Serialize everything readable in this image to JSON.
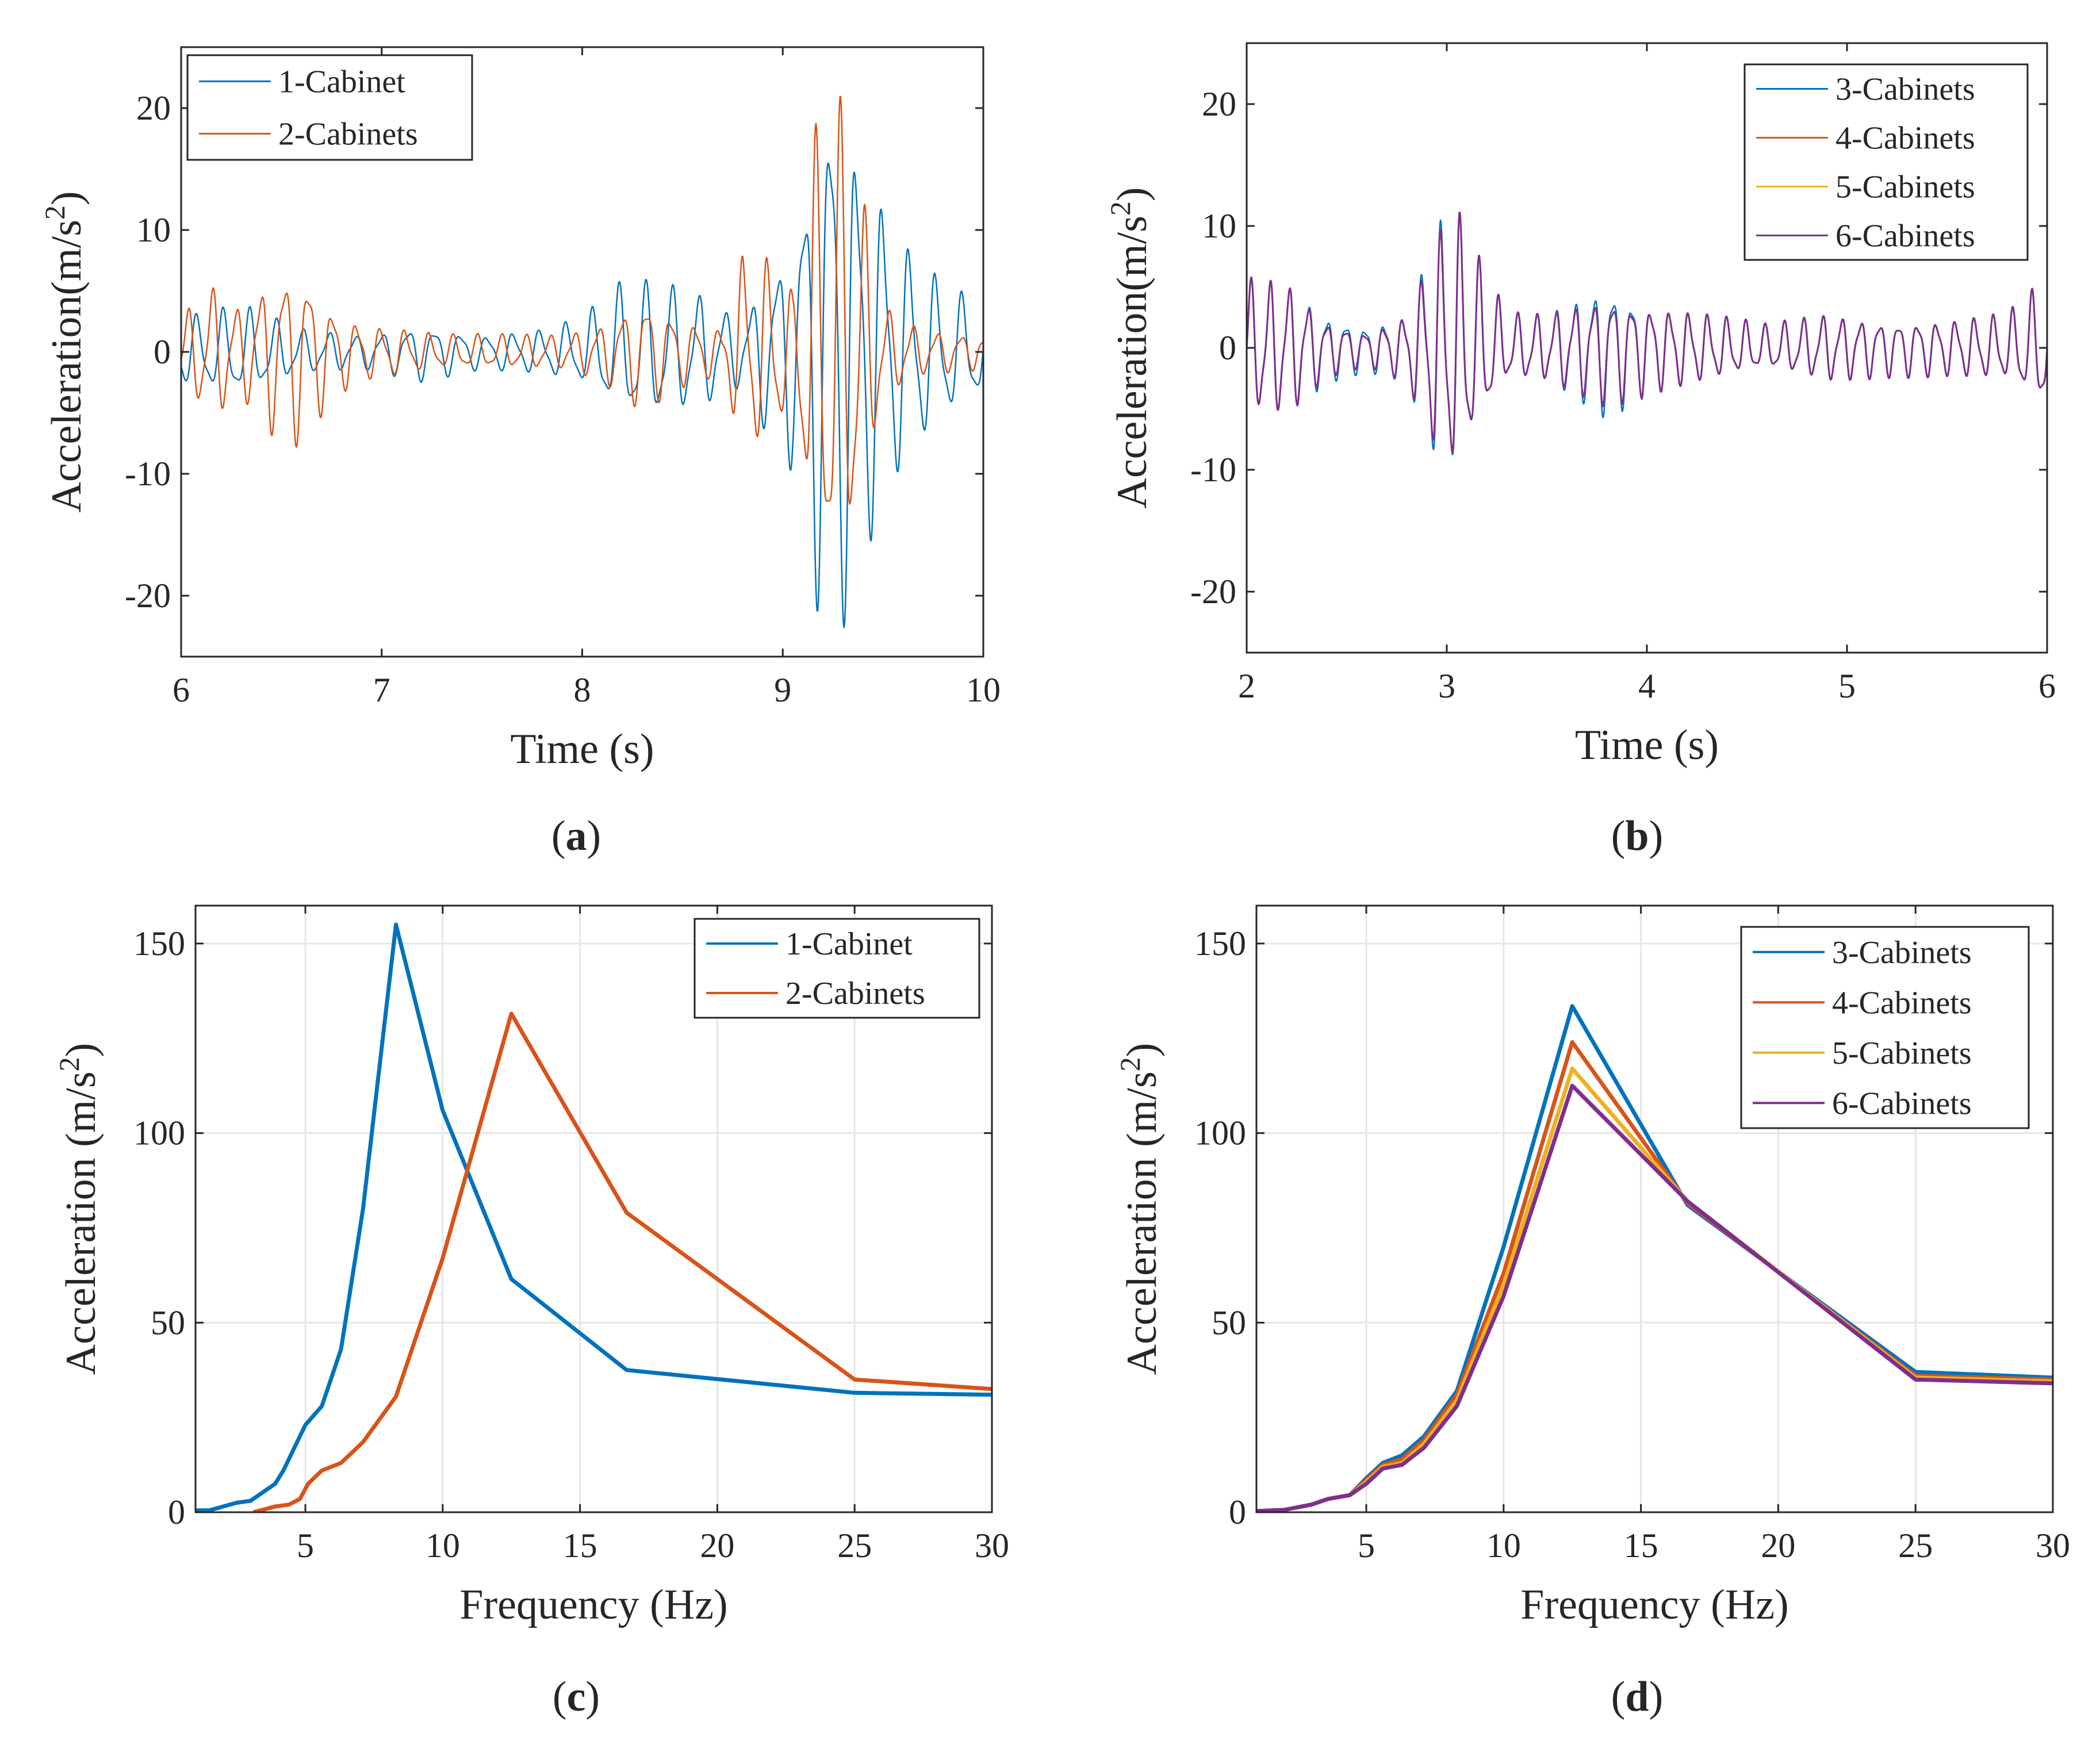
{
  "colors": {
    "blue": "#0072BD",
    "orange": "#D95319",
    "yellow": "#EDB120",
    "purple": "#7E2F8E"
  },
  "chart_data": [
    {
      "id": "a",
      "type": "line",
      "caption_letter": "a",
      "xlabel": "Time (s)",
      "ylabel": "Acceleration(m/s",
      "ylabel_sup": "2",
      "ylabel_end": ")",
      "xlim": [
        6,
        10
      ],
      "ylim": [
        -25,
        25
      ],
      "xticks": [
        6,
        7,
        8,
        9,
        10
      ],
      "yticks": [
        -20,
        -10,
        0,
        10,
        20
      ],
      "grid": false,
      "legend_position": "top-left",
      "series": [
        {
          "name": "1-Cabinet",
          "color": "#0072BD",
          "stroke": 2.5,
          "envelope": [
            [
              6.0,
              3
            ],
            [
              6.3,
              4
            ],
            [
              6.6,
              2
            ],
            [
              6.9,
              1.5
            ],
            [
              7.2,
              2.5
            ],
            [
              7.5,
              1.5
            ],
            [
              7.8,
              2
            ],
            [
              8.0,
              3
            ],
            [
              8.2,
              6
            ],
            [
              8.4,
              6
            ],
            [
              8.6,
              5
            ],
            [
              8.8,
              3
            ],
            [
              8.95,
              8
            ],
            [
              9.05,
              10
            ],
            [
              9.15,
              20
            ],
            [
              9.25,
              26
            ],
            [
              9.4,
              18
            ],
            [
              9.6,
              10
            ],
            [
              9.8,
              6
            ],
            [
              10.0,
              4
            ]
          ],
          "freq": 7.6,
          "phase": 0.3
        },
        {
          "name": "2-Cabinets",
          "color": "#D95319",
          "stroke": 2.5,
          "envelope": [
            [
              6.0,
              3
            ],
            [
              6.15,
              6
            ],
            [
              6.3,
              4
            ],
            [
              6.45,
              7
            ],
            [
              6.6,
              8
            ],
            [
              6.75,
              4
            ],
            [
              6.9,
              2.5
            ],
            [
              7.1,
              2
            ],
            [
              7.3,
              1.5
            ],
            [
              7.6,
              1.5
            ],
            [
              7.9,
              1.5
            ],
            [
              8.1,
              2.5
            ],
            [
              8.3,
              5
            ],
            [
              8.5,
              3
            ],
            [
              8.7,
              2
            ],
            [
              8.8,
              9
            ],
            [
              8.95,
              8
            ],
            [
              9.05,
              5
            ],
            [
              9.15,
              18
            ],
            [
              9.25,
              23
            ],
            [
              9.35,
              18
            ],
            [
              9.5,
              4
            ],
            [
              9.7,
              2
            ],
            [
              10.0,
              1.5
            ]
          ],
          "freq": 8.3,
          "phase": 1.1
        }
      ]
    },
    {
      "id": "b",
      "type": "line",
      "caption_letter": "b",
      "xlabel": "Time (s)",
      "ylabel": "Acceleration(m/s",
      "ylabel_sup": "2",
      "ylabel_end": ")",
      "xlim": [
        2,
        6
      ],
      "ylim": [
        -25,
        25
      ],
      "xticks": [
        2,
        3,
        4,
        5,
        6
      ],
      "yticks": [
        -20,
        -10,
        0,
        10,
        20
      ],
      "grid": false,
      "legend_position": "top-right",
      "series": [
        {
          "name": "3-Cabinets",
          "color": "#0072BD",
          "stroke": 2.5,
          "envelope": [
            [
              2.0,
              6
            ],
            [
              2.2,
              6
            ],
            [
              2.4,
              3
            ],
            [
              2.6,
              2
            ],
            [
              2.8,
              3
            ],
            [
              2.95,
              11
            ],
            [
              3.05,
              12
            ],
            [
              3.15,
              8
            ],
            [
              3.3,
              3
            ],
            [
              3.5,
              3
            ],
            [
              3.8,
              6
            ],
            [
              4.0,
              4
            ],
            [
              4.3,
              3
            ],
            [
              4.6,
              2
            ],
            [
              4.9,
              3
            ],
            [
              5.2,
              2.5
            ],
            [
              5.5,
              2.5
            ],
            [
              5.8,
              3
            ],
            [
              6.0,
              6
            ]
          ],
          "freq": 10.5,
          "phase": 0.2
        },
        {
          "name": "4-Cabinets",
          "color": "#D95319",
          "stroke": 2.5,
          "envelope": [
            [
              2.0,
              6
            ],
            [
              2.2,
              6
            ],
            [
              2.4,
              2.5
            ],
            [
              2.6,
              1.5
            ],
            [
              2.8,
              3
            ],
            [
              2.95,
              10
            ],
            [
              3.05,
              12
            ],
            [
              3.15,
              8
            ],
            [
              3.3,
              3
            ],
            [
              3.5,
              3
            ],
            [
              3.8,
              5
            ],
            [
              4.0,
              4
            ],
            [
              4.3,
              3
            ],
            [
              4.6,
              2
            ],
            [
              4.9,
              3
            ],
            [
              5.2,
              2.5
            ],
            [
              5.5,
              2.5
            ],
            [
              5.8,
              3
            ],
            [
              6.0,
              6
            ]
          ],
          "freq": 10.5,
          "phase": 0.25
        },
        {
          "name": "5-Cabinets",
          "color": "#EDB120",
          "stroke": 2.5,
          "envelope": [
            [
              2.0,
              6
            ],
            [
              2.2,
              6
            ],
            [
              2.4,
              2.5
            ],
            [
              2.6,
              1.5
            ],
            [
              2.8,
              3
            ],
            [
              2.95,
              10
            ],
            [
              3.05,
              12
            ],
            [
              3.15,
              8
            ],
            [
              3.3,
              3
            ],
            [
              3.5,
              3
            ],
            [
              3.8,
              5
            ],
            [
              4.0,
              4
            ],
            [
              4.3,
              3
            ],
            [
              4.6,
              2
            ],
            [
              4.9,
              3
            ],
            [
              5.2,
              2.5
            ],
            [
              5.5,
              2.5
            ],
            [
              5.8,
              3
            ],
            [
              6.0,
              6
            ]
          ],
          "freq": 10.5,
          "phase": 0.27
        },
        {
          "name": "6-Cabinets",
          "color": "#7E2F8E",
          "stroke": 3,
          "envelope": [
            [
              2.0,
              6
            ],
            [
              2.2,
              6
            ],
            [
              2.4,
              2.5
            ],
            [
              2.6,
              1.5
            ],
            [
              2.8,
              3
            ],
            [
              2.95,
              10
            ],
            [
              3.05,
              12
            ],
            [
              3.15,
              8
            ],
            [
              3.3,
              3
            ],
            [
              3.5,
              3
            ],
            [
              3.8,
              5
            ],
            [
              4.0,
              4
            ],
            [
              4.3,
              3
            ],
            [
              4.6,
              2
            ],
            [
              4.9,
              3
            ],
            [
              5.2,
              2.5
            ],
            [
              5.5,
              2.5
            ],
            [
              5.8,
              3
            ],
            [
              6.0,
              6
            ]
          ],
          "freq": 10.5,
          "phase": 0.28
        }
      ]
    },
    {
      "id": "c",
      "type": "line",
      "caption_letter": "c",
      "xlabel": "Frequency (Hz)",
      "ylabel": "Acceleration (m/s",
      "ylabel_sup": "2",
      "ylabel_end": ")",
      "xlim": [
        1,
        30
      ],
      "ylim": [
        0,
        160
      ],
      "xticks": [
        5,
        10,
        15,
        20,
        25,
        30
      ],
      "yticks": [
        0,
        50,
        100,
        150
      ],
      "grid": true,
      "legend_position": "top-right",
      "series": [
        {
          "name": "1-Cabinet",
          "color": "#0072BD",
          "stroke": 7,
          "points": [
            [
              1,
              0.5
            ],
            [
              1.5,
              0.5
            ],
            [
              2,
              1.5
            ],
            [
              2.5,
              2.5
            ],
            [
              3,
              3
            ],
            [
              3.5,
              5.5
            ],
            [
              3.9,
              7.5
            ],
            [
              4.2,
              11
            ],
            [
              4.6,
              17
            ],
            [
              5,
              23
            ],
            [
              5.6,
              28
            ],
            [
              6.3,
              43
            ],
            [
              7.1,
              80
            ],
            [
              8.3,
              155
            ],
            [
              10,
              106
            ],
            [
              12.5,
              61.5
            ],
            [
              16.7,
              37.5
            ],
            [
              25,
              31.5
            ],
            [
              30,
              31
            ]
          ]
        },
        {
          "name": "2-Cabinets",
          "color": "#D95319",
          "stroke": 7,
          "points": [
            [
              3.1,
              0
            ],
            [
              3.9,
              1.5
            ],
            [
              4.4,
              2
            ],
            [
              4.8,
              3.5
            ],
            [
              5.1,
              7.5
            ],
            [
              5.6,
              11
            ],
            [
              6.3,
              13
            ],
            [
              7.1,
              18.5
            ],
            [
              8.3,
              30.5
            ],
            [
              10,
              67
            ],
            [
              12.5,
              131.5
            ],
            [
              16.7,
              79
            ],
            [
              25,
              35
            ],
            [
              30,
              32.5
            ]
          ]
        }
      ]
    },
    {
      "id": "d",
      "type": "line",
      "caption_letter": "d",
      "xlabel": "Frequency (Hz)",
      "ylabel": "Acceleration (m/s",
      "ylabel_sup": "2",
      "ylabel_end": ")",
      "xlim": [
        1,
        30
      ],
      "ylim": [
        0,
        160
      ],
      "xticks": [
        5,
        10,
        15,
        20,
        25,
        30
      ],
      "yticks": [
        0,
        50,
        100,
        150
      ],
      "grid": true,
      "legend_position": "top-right",
      "series": [
        {
          "name": "3-Cabinets",
          "color": "#0072BD",
          "stroke": 7,
          "points": [
            [
              1,
              0.3
            ],
            [
              2,
              0.6
            ],
            [
              3,
              2
            ],
            [
              3.6,
              3.5
            ],
            [
              4.4,
              4.5
            ],
            [
              5,
              9
            ],
            [
              5.6,
              13
            ],
            [
              6.3,
              15
            ],
            [
              7.1,
              20
            ],
            [
              8.3,
              32
            ],
            [
              10,
              70
            ],
            [
              12.5,
              133.5
            ],
            [
              16.7,
              81
            ],
            [
              25,
              37
            ],
            [
              30,
              35.5
            ]
          ]
        },
        {
          "name": "4-Cabinets",
          "color": "#D95319",
          "stroke": 7,
          "points": [
            [
              1,
              0.3
            ],
            [
              2,
              0.6
            ],
            [
              3,
              2
            ],
            [
              3.6,
              3.5
            ],
            [
              4.4,
              4.5
            ],
            [
              5,
              8.5
            ],
            [
              5.6,
              12.5
            ],
            [
              6.3,
              14
            ],
            [
              7.1,
              19
            ],
            [
              8.3,
              31
            ],
            [
              10,
              63
            ],
            [
              12.5,
              124
            ],
            [
              16.7,
              81.5
            ],
            [
              25,
              36
            ],
            [
              30,
              35
            ]
          ]
        },
        {
          "name": "5-Cabinets",
          "color": "#EDB120",
          "stroke": 7,
          "points": [
            [
              1,
              0.3
            ],
            [
              2,
              0.6
            ],
            [
              3,
              2
            ],
            [
              3.6,
              3.5
            ],
            [
              4.4,
              4.5
            ],
            [
              5,
              8
            ],
            [
              5.6,
              12
            ],
            [
              6.3,
              13
            ],
            [
              7.1,
              18
            ],
            [
              8.3,
              29.5
            ],
            [
              10,
              60
            ],
            [
              12.5,
              117
            ],
            [
              16.7,
              82
            ],
            [
              25,
              35.5
            ],
            [
              30,
              34.5
            ]
          ]
        },
        {
          "name": "6-Cabinets",
          "color": "#7E2F8E",
          "stroke": 7,
          "points": [
            [
              1,
              0.3
            ],
            [
              2,
              0.6
            ],
            [
              3,
              2
            ],
            [
              3.6,
              3.5
            ],
            [
              4.4,
              4.5
            ],
            [
              5,
              7.5
            ],
            [
              5.6,
              11.5
            ],
            [
              6.3,
              12.5
            ],
            [
              7.1,
              17
            ],
            [
              8.3,
              28
            ],
            [
              10,
              57
            ],
            [
              12.5,
              112.5
            ],
            [
              16.7,
              82
            ],
            [
              25,
              35
            ],
            [
              30,
              34
            ]
          ]
        }
      ]
    }
  ]
}
